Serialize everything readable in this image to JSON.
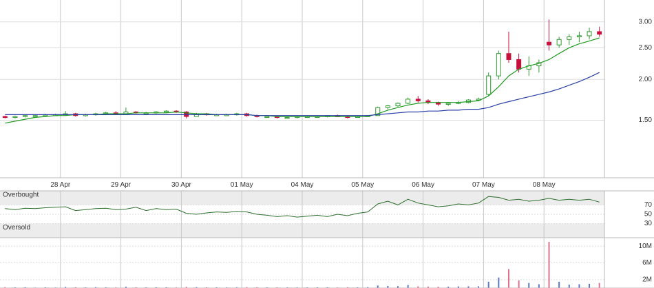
{
  "chart_data": [
    {
      "type": "candlestick",
      "ohlc": [
        [
          1.54,
          1.55,
          1.52,
          1.53
        ],
        [
          1.53,
          1.55,
          1.52,
          1.54
        ],
        [
          1.54,
          1.56,
          1.53,
          1.55
        ],
        [
          1.55,
          1.56,
          1.54,
          1.55
        ],
        [
          1.55,
          1.57,
          1.54,
          1.56
        ],
        [
          1.56,
          1.57,
          1.55,
          1.56
        ],
        [
          1.56,
          1.6,
          1.55,
          1.57
        ],
        [
          1.57,
          1.58,
          1.54,
          1.55
        ],
        [
          1.55,
          1.57,
          1.54,
          1.56
        ],
        [
          1.56,
          1.58,
          1.55,
          1.57
        ],
        [
          1.57,
          1.59,
          1.56,
          1.58
        ],
        [
          1.58,
          1.6,
          1.56,
          1.57
        ],
        [
          1.57,
          1.64,
          1.56,
          1.59
        ],
        [
          1.59,
          1.6,
          1.57,
          1.58
        ],
        [
          1.58,
          1.59,
          1.57,
          1.58
        ],
        [
          1.58,
          1.6,
          1.57,
          1.59
        ],
        [
          1.59,
          1.61,
          1.58,
          1.6
        ],
        [
          1.6,
          1.61,
          1.58,
          1.59
        ],
        [
          1.59,
          1.6,
          1.52,
          1.54
        ],
        [
          1.54,
          1.58,
          1.54,
          1.57
        ],
        [
          1.57,
          1.58,
          1.55,
          1.56
        ],
        [
          1.56,
          1.57,
          1.55,
          1.56
        ],
        [
          1.56,
          1.57,
          1.55,
          1.56
        ],
        [
          1.56,
          1.58,
          1.55,
          1.57
        ],
        [
          1.57,
          1.58,
          1.54,
          1.55
        ],
        [
          1.55,
          1.56,
          1.53,
          1.54
        ],
        [
          1.54,
          1.55,
          1.53,
          1.54
        ],
        [
          1.54,
          1.55,
          1.52,
          1.53
        ],
        [
          1.53,
          1.54,
          1.52,
          1.53
        ],
        [
          1.53,
          1.55,
          1.52,
          1.54
        ],
        [
          1.54,
          1.55,
          1.53,
          1.54
        ],
        [
          1.54,
          1.55,
          1.53,
          1.54
        ],
        [
          1.54,
          1.55,
          1.53,
          1.55
        ],
        [
          1.55,
          1.56,
          1.54,
          1.54
        ],
        [
          1.54,
          1.55,
          1.52,
          1.53
        ],
        [
          1.53,
          1.55,
          1.53,
          1.54
        ],
        [
          1.54,
          1.55,
          1.54,
          1.55
        ],
        [
          1.55,
          1.65,
          1.55,
          1.64
        ],
        [
          1.64,
          1.67,
          1.62,
          1.66
        ],
        [
          1.66,
          1.7,
          1.65,
          1.69
        ],
        [
          1.69,
          1.76,
          1.68,
          1.74
        ],
        [
          1.74,
          1.78,
          1.7,
          1.72
        ],
        [
          1.72,
          1.74,
          1.68,
          1.7
        ],
        [
          1.7,
          1.71,
          1.66,
          1.68
        ],
        [
          1.68,
          1.7,
          1.66,
          1.69
        ],
        [
          1.69,
          1.72,
          1.68,
          1.7
        ],
        [
          1.7,
          1.74,
          1.69,
          1.73
        ],
        [
          1.73,
          1.76,
          1.72,
          1.74
        ],
        [
          1.8,
          2.1,
          1.78,
          2.05
        ],
        [
          2.05,
          2.45,
          2.0,
          2.4
        ],
        [
          2.4,
          2.8,
          2.25,
          2.3
        ],
        [
          2.3,
          2.4,
          2.1,
          2.15
        ],
        [
          2.15,
          2.35,
          2.05,
          2.2
        ],
        [
          2.2,
          2.3,
          2.1,
          2.25
        ],
        [
          2.6,
          3.05,
          2.45,
          2.55
        ],
        [
          2.55,
          2.7,
          2.5,
          2.65
        ],
        [
          2.65,
          2.75,
          2.55,
          2.7
        ],
        [
          2.7,
          2.8,
          2.6,
          2.72
        ],
        [
          2.72,
          2.88,
          2.65,
          2.8
        ],
        [
          2.8,
          2.9,
          2.7,
          2.75
        ]
      ],
      "up_color": "#2f9a2f",
      "down_color": "#c8103c",
      "series": [
        {
          "color": "#1f9a1f",
          "values": [
            1.47,
            1.49,
            1.51,
            1.53,
            1.54,
            1.55,
            1.55,
            1.56,
            1.56,
            1.56,
            1.57,
            1.57,
            1.57,
            1.58,
            1.58,
            1.58,
            1.58,
            1.59,
            1.58,
            1.57,
            1.57,
            1.56,
            1.56,
            1.56,
            1.56,
            1.55,
            1.55,
            1.54,
            1.54,
            1.54,
            1.54,
            1.54,
            1.54,
            1.54,
            1.54,
            1.54,
            1.54,
            1.57,
            1.61,
            1.64,
            1.67,
            1.69,
            1.7,
            1.7,
            1.7,
            1.7,
            1.71,
            1.72,
            1.78,
            1.9,
            2.05,
            2.15,
            2.2,
            2.24,
            2.3,
            2.4,
            2.5,
            2.57,
            2.62,
            2.68
          ]
        },
        {
          "color": "#2a3fa8",
          "values": [
            1.56,
            1.56,
            1.56,
            1.56,
            1.56,
            1.56,
            1.56,
            1.56,
            1.56,
            1.56,
            1.56,
            1.56,
            1.56,
            1.56,
            1.56,
            1.56,
            1.56,
            1.56,
            1.56,
            1.56,
            1.56,
            1.56,
            1.56,
            1.56,
            1.56,
            1.55,
            1.55,
            1.55,
            1.55,
            1.55,
            1.55,
            1.55,
            1.55,
            1.55,
            1.55,
            1.55,
            1.55,
            1.56,
            1.57,
            1.58,
            1.59,
            1.59,
            1.6,
            1.6,
            1.61,
            1.61,
            1.62,
            1.62,
            1.64,
            1.68,
            1.71,
            1.74,
            1.77,
            1.8,
            1.83,
            1.87,
            1.92,
            1.97,
            2.03,
            2.1
          ]
        }
      ],
      "log_scale": true,
      "ylim": [
        1,
        3.5
      ],
      "yticks": [
        {
          "value": 1.5,
          "label": "1.50"
        },
        {
          "value": 2,
          "label": "2.00"
        },
        {
          "value": 2.5,
          "label": "2.50"
        },
        {
          "value": 3,
          "label": "3.00"
        }
      ],
      "xlim": [
        0,
        60
      ],
      "xticks": [
        {
          "value": 6,
          "label": "28 Apr"
        },
        {
          "value": 12,
          "label": "29 Apr"
        },
        {
          "value": 18,
          "label": "30 Apr"
        },
        {
          "value": 24,
          "label": "01 May"
        },
        {
          "value": 30,
          "label": "04 May"
        },
        {
          "value": 36,
          "label": "05 May"
        },
        {
          "value": 42,
          "label": "06 May"
        },
        {
          "value": 48,
          "label": "07 May"
        },
        {
          "value": 54,
          "label": "08 May"
        }
      ],
      "grid": true
    },
    {
      "type": "line",
      "values": [
        62,
        60,
        63,
        62,
        64,
        65,
        66,
        58,
        60,
        62,
        63,
        60,
        61,
        65,
        58,
        62,
        60,
        61,
        52,
        50,
        53,
        55,
        54,
        56,
        55,
        50,
        48,
        45,
        47,
        44,
        46,
        48,
        45,
        50,
        47,
        52,
        55,
        72,
        78,
        70,
        82,
        74,
        70,
        66,
        68,
        72,
        70,
        74,
        88,
        86,
        80,
        82,
        78,
        80,
        84,
        80,
        82,
        80,
        82,
        76
      ],
      "color": "#2d6e2d",
      "zones": [
        {
          "label": "Overbought",
          "range": [
            70,
            100
          ]
        },
        {
          "label": "Oversold",
          "range": [
            0,
            30
          ]
        }
      ],
      "ylim": [
        0,
        100
      ],
      "yticks": [
        30,
        50,
        70
      ]
    },
    {
      "type": "bar",
      "values": [
        200000,
        150000,
        180000,
        120000,
        160000,
        140000,
        250000,
        180000,
        150000,
        200000,
        170000,
        160000,
        300000,
        180000,
        150000,
        170000,
        160000,
        150000,
        280000,
        200000,
        160000,
        150000,
        140000,
        170000,
        200000,
        180000,
        150000,
        160000,
        140000,
        150000,
        160000,
        150000,
        170000,
        140000,
        180000,
        160000,
        200000,
        600000,
        500000,
        450000,
        700000,
        400000,
        350000,
        300000,
        320000,
        380000,
        400000,
        420000,
        1500000,
        2500000,
        4500000,
        1800000,
        1200000,
        900000,
        11000000,
        1500000,
        800000,
        900000,
        1000000,
        1200000
      ],
      "up_color": "#5a78c8",
      "down_color": "#e07090",
      "ylim": [
        0,
        12000000
      ],
      "yticks": [
        {
          "value": 2000000,
          "label": "2M"
        },
        {
          "value": 6000000,
          "label": "6M"
        },
        {
          "value": 10000000,
          "label": "10M"
        }
      ]
    }
  ]
}
